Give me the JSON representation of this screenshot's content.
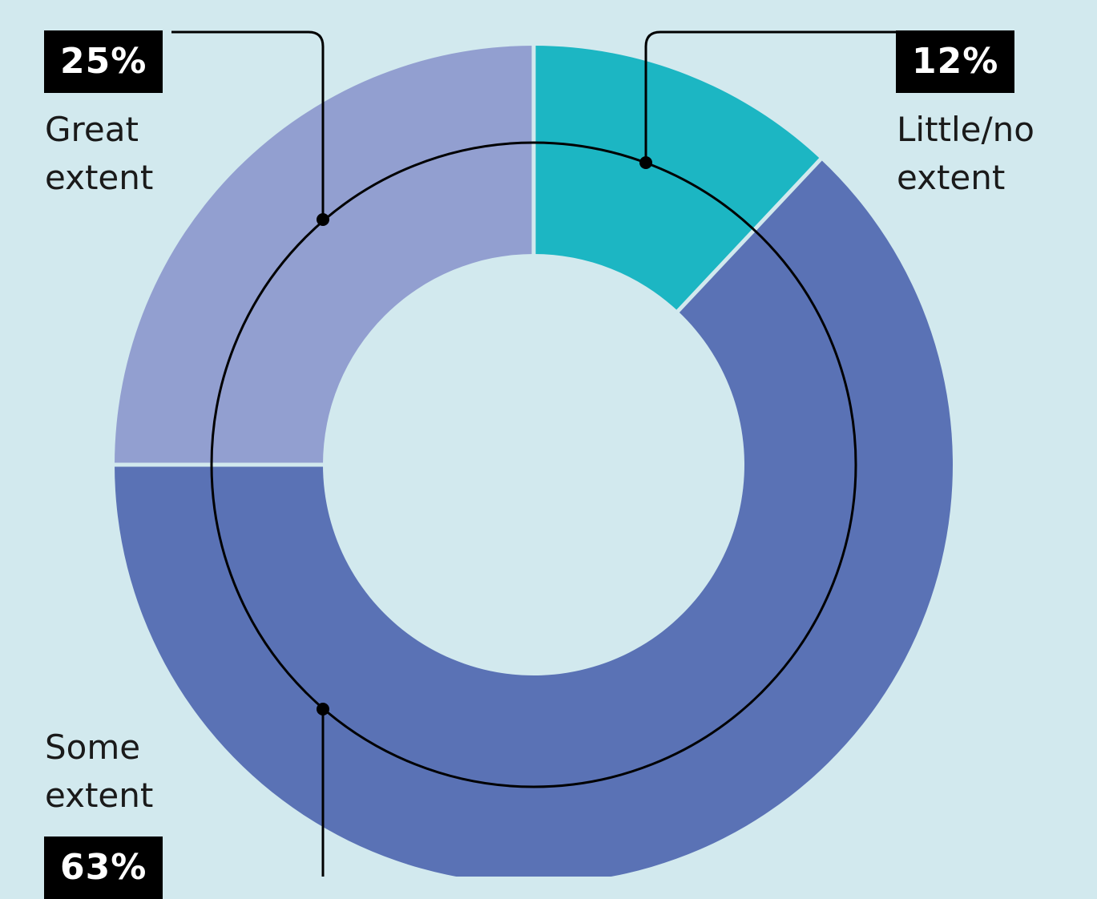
{
  "chart_data": {
    "type": "pie",
    "categories": [
      "Little/no extent",
      "Some extent",
      "Great extent"
    ],
    "values": [
      12,
      63,
      25
    ],
    "value_labels": [
      "12%",
      "63%",
      "25%"
    ],
    "colors": [
      "#1cb6c3",
      "#5a72b5",
      "#929fd0"
    ],
    "legend": "callouts",
    "label_lines": {
      "little": [
        "Little/no",
        "extent"
      ],
      "some": [
        "Some",
        "extent"
      ],
      "great": [
        "Great",
        "extent"
      ]
    }
  },
  "colors": {
    "background": "#d2e9ee",
    "leader": "#000000",
    "badge_bg": "#000000",
    "badge_text": "#ffffff"
  }
}
